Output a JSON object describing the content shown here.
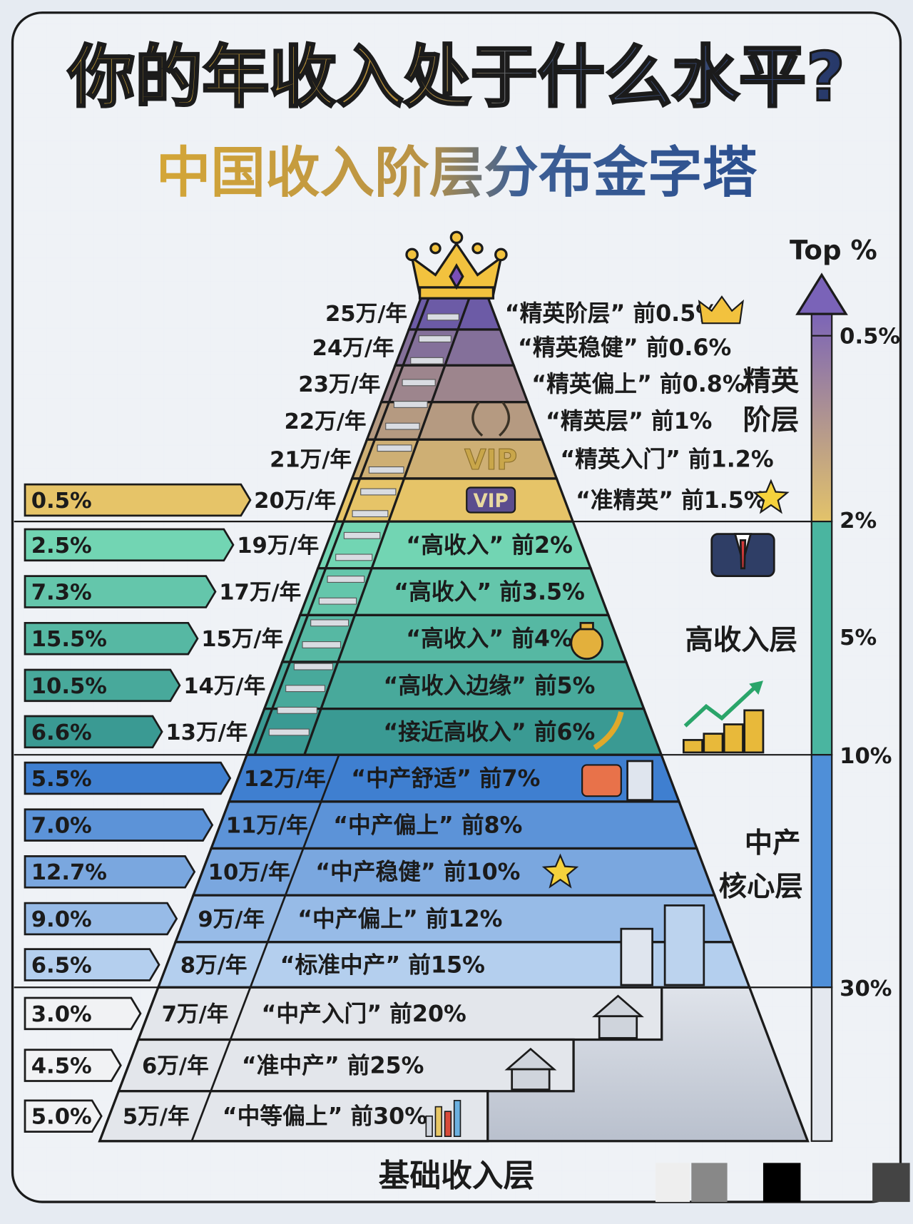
{
  "title": "你的年收入处于什么水平?",
  "subtitle": "中国收入阶层分布金字塔",
  "axis": {
    "label": "Top %",
    "ticks": [
      "0.5%",
      "2%",
      "5%",
      "10%",
      "30%"
    ]
  },
  "colors": {
    "elite_top": "#6c5ba6",
    "elite_bottom": "#e6c468",
    "high_top": "#72d5b3",
    "high_bottom": "#3a9a93",
    "mid_top": "#3f7fd0",
    "mid_bottom": "#b4cfee",
    "base": "#e3e6eb",
    "outline": "#1b1b1b"
  },
  "tiers": [
    {
      "name": "精英阶层",
      "name_lines": [
        "精英",
        "阶层"
      ],
      "rows": [
        {
          "income": "25万/年",
          "label": "“精英阶层” 前0.5%",
          "share": ""
        },
        {
          "income": "24万/年",
          "label": "“精英稳健” 前0.6%",
          "share": ""
        },
        {
          "income": "23万/年",
          "label": "“精英偏上” 前0.8%",
          "share": ""
        },
        {
          "income": "22万/年",
          "label": "“精英层” 前1%",
          "share": ""
        },
        {
          "income": "21万/年",
          "label": "“精英入门” 前1.2%",
          "share": "",
          "badge": "VIP"
        },
        {
          "income": "20万/年",
          "label": "“准精英” 前1.5%",
          "share": "0.5%",
          "badge": "VIP"
        }
      ]
    },
    {
      "name": "高收入层",
      "name_lines": [
        "高收入层"
      ],
      "rows": [
        {
          "income": "19万/年",
          "label": "“高收入” 前2%",
          "share": "2.5%"
        },
        {
          "income": "17万/年",
          "label": "“高收入” 前3.5%",
          "share": "7.3%"
        },
        {
          "income": "15万/年",
          "label": "“高收入” 前4%",
          "share": "15.5%"
        },
        {
          "income": "14万/年",
          "label": "“高收入边缘” 前5%",
          "share": "10.5%"
        },
        {
          "income": "13万/年",
          "label": "“接近高收入” 前6%",
          "share": "6.6%"
        }
      ]
    },
    {
      "name": "中产核心层",
      "name_lines": [
        "中产",
        "核心层"
      ],
      "rows": [
        {
          "income": "12万/年",
          "label": "“中产舒适” 前7%",
          "share": "5.5%"
        },
        {
          "income": "11万/年",
          "label": "“中产偏上” 前8%",
          "share": "7.0%"
        },
        {
          "income": "10万/年",
          "label": "“中产稳健” 前10%",
          "share": "12.7%"
        },
        {
          "income": "9万/年",
          "label": "“中产偏上” 前12%",
          "share": "9.0%"
        },
        {
          "income": "8万/年",
          "label": "“标准中产” 前15%",
          "share": "6.5%"
        }
      ]
    },
    {
      "name": "基础收入层",
      "name_lines": [
        "基础收入层"
      ],
      "rows": [
        {
          "income": "7万/年",
          "label": "“中产入门” 前20%",
          "share": "3.0%"
        },
        {
          "income": "6万/年",
          "label": "“准中产” 前25%",
          "share": "4.5%"
        },
        {
          "income": "5万/年",
          "label": "“中等偏上” 前30%",
          "share": "5.0%"
        }
      ]
    }
  ]
}
